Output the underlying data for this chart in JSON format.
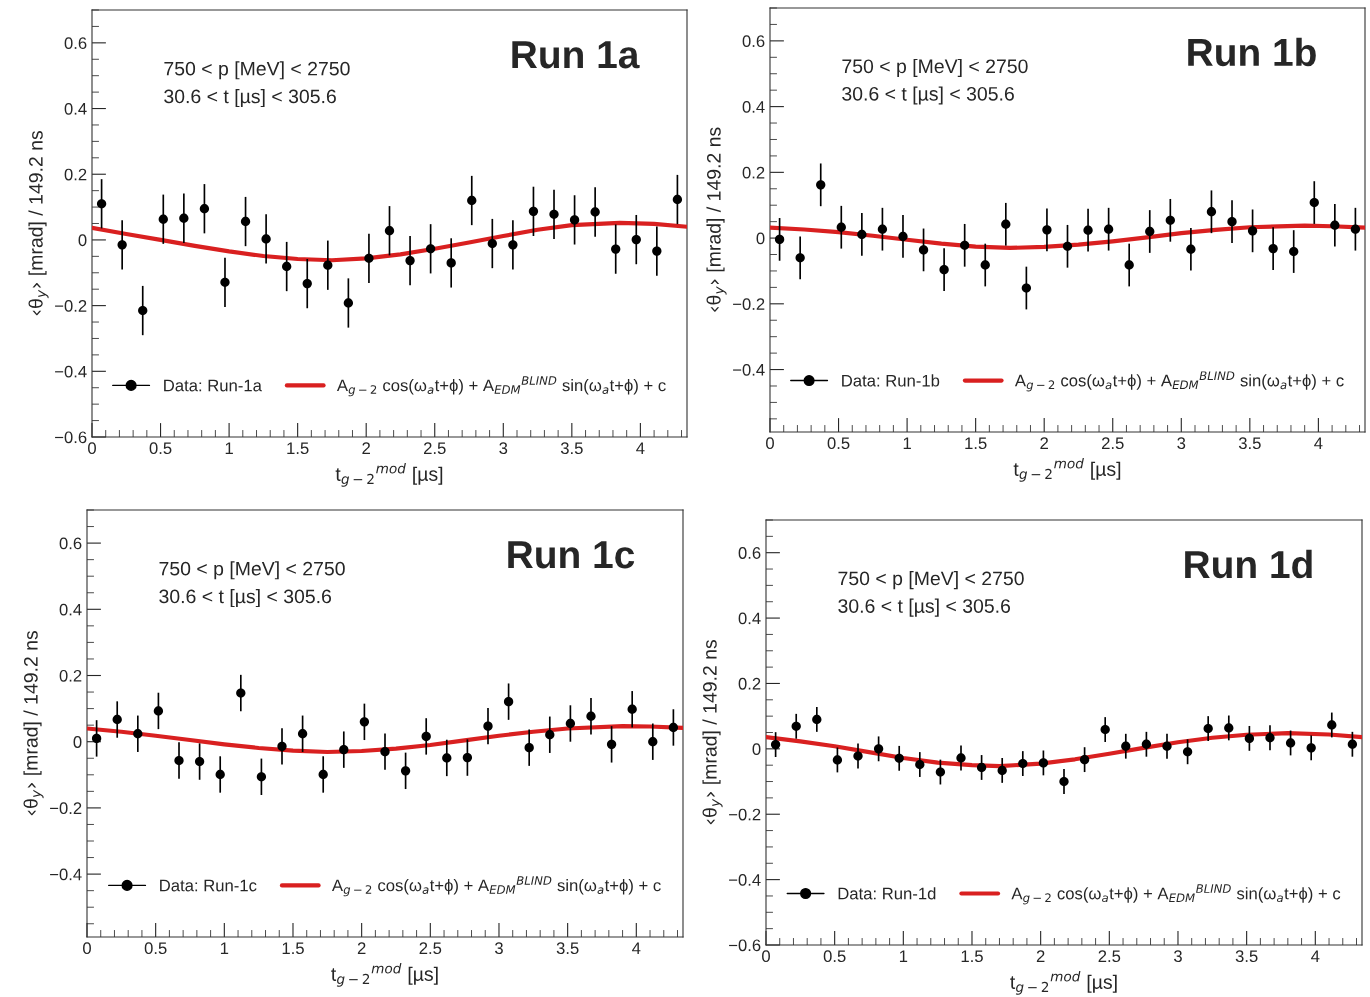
{
  "chart_data": [
    {
      "type": "scatter",
      "title": "Run 1a",
      "xlabel": "t$_{g−2}$$^{mod}$ [µs]",
      "ylabel": "‹θ$_{y}$› [mrad] / 149.2 ns",
      "annotations": [
        "750 < p [MeV] < 2750",
        "30.6 < t [µs] < 305.6"
      ],
      "xlim": [
        0,
        4.34
      ],
      "xticks": [
        0,
        0.5,
        1,
        1.5,
        2,
        2.5,
        3,
        3.5,
        4
      ],
      "ylim": [
        -0.6,
        0.7
      ],
      "yticks": [
        -0.6,
        -0.4,
        -0.2,
        0,
        0.2,
        0.4,
        0.6
      ],
      "grid": false,
      "legend": "bottom",
      "series": [
        {
          "name": "Data: Run-1a",
          "type": "scatter",
          "color": "#000000",
          "marker": "circle",
          "x": [
            0.07,
            0.22,
            0.37,
            0.52,
            0.67,
            0.82,
            0.97,
            1.12,
            1.27,
            1.42,
            1.57,
            1.72,
            1.87,
            2.02,
            2.17,
            2.32,
            2.47,
            2.62,
            2.77,
            2.92,
            3.07,
            3.22,
            3.37,
            3.52,
            3.67,
            3.82,
            3.97,
            4.12,
            4.27
          ],
          "values": [
            0.11,
            -0.015,
            -0.215,
            0.063,
            0.066,
            0.095,
            -0.129,
            0.056,
            0.003,
            -0.081,
            -0.133,
            -0.077,
            -0.192,
            -0.056,
            0.028,
            -0.063,
            -0.027,
            -0.07,
            0.12,
            -0.011,
            -0.015,
            0.087,
            0.078,
            0.061,
            0.085,
            -0.028,
            0.001,
            -0.034,
            0.123
          ],
          "errors": [
            0.075,
            0.075,
            0.075,
            0.075,
            0.075,
            0.075,
            0.075,
            0.075,
            0.075,
            0.075,
            0.075,
            0.075,
            0.075,
            0.075,
            0.075,
            0.075,
            0.075,
            0.075,
            0.075,
            0.075,
            0.075,
            0.075,
            0.075,
            0.075,
            0.075,
            0.075,
            0.075,
            0.075,
            0.075
          ]
        },
        {
          "name": "A$_{g−2}$ cos(ω$_{a}$t+ϕ) + A$_{EDM}$$^{BLIND}$ sin(ω$_{a}$t+ϕ) + c",
          "type": "line",
          "color": "#d92020",
          "x": [
            0,
            0.25,
            0.5,
            0.75,
            1.0,
            1.25,
            1.5,
            1.75,
            2.0,
            2.25,
            2.5,
            2.75,
            3.0,
            3.25,
            3.5,
            3.85,
            4.1,
            4.34
          ],
          "values": [
            0.037,
            0.018,
            0.0,
            -0.018,
            -0.035,
            -0.049,
            -0.058,
            -0.062,
            -0.056,
            -0.044,
            -0.027,
            -0.008,
            0.012,
            0.031,
            0.045,
            0.052,
            0.049,
            0.04
          ]
        }
      ]
    },
    {
      "type": "scatter",
      "title": "Run 1b",
      "xlabel": "t$_{g−2}$$^{mod}$ [µs]",
      "ylabel": "‹θ$_{y}$› [mrad] / 149.2 ns",
      "annotations": [
        "750 < p [MeV] < 2750",
        "30.6 < t [µs] < 305.6"
      ],
      "xlim": [
        0,
        4.34
      ],
      "xticks": [
        0,
        0.5,
        1,
        1.5,
        2,
        2.5,
        3,
        3.5,
        4
      ],
      "ylim": [
        -0.59,
        0.7
      ],
      "yticks": [
        -0.4,
        -0.2,
        0,
        0.2,
        0.4,
        0.6
      ],
      "grid": false,
      "legend": "bottom",
      "series": [
        {
          "name": "Data: Run-1b",
          "type": "scatter",
          "color": "#000000",
          "marker": "circle",
          "x": [
            0.07,
            0.22,
            0.37,
            0.52,
            0.67,
            0.82,
            0.97,
            1.12,
            1.27,
            1.42,
            1.57,
            1.72,
            1.87,
            2.02,
            2.17,
            2.32,
            2.47,
            2.62,
            2.77,
            2.92,
            3.07,
            3.22,
            3.37,
            3.52,
            3.67,
            3.82,
            3.97,
            4.12,
            4.27
          ],
          "values": [
            -0.004,
            -0.06,
            0.162,
            0.033,
            0.011,
            0.027,
            0.005,
            -0.036,
            -0.096,
            -0.022,
            -0.082,
            0.042,
            -0.152,
            0.025,
            -0.025,
            0.024,
            0.027,
            -0.082,
            0.02,
            0.054,
            -0.034,
            0.08,
            0.05,
            0.022,
            -0.032,
            -0.041,
            0.108,
            0.039,
            0.027
          ],
          "errors": [
            0.065,
            0.065,
            0.065,
            0.065,
            0.065,
            0.065,
            0.065,
            0.065,
            0.065,
            0.065,
            0.065,
            0.065,
            0.065,
            0.065,
            0.065,
            0.065,
            0.065,
            0.065,
            0.065,
            0.065,
            0.065,
            0.065,
            0.065,
            0.065,
            0.065,
            0.065,
            0.065,
            0.065,
            0.065
          ]
        },
        {
          "name": "A$_{g−2}$ cos(ω$_{a}$t+ϕ) + A$_{EDM}$$^{BLIND}$ sin(ω$_{a}$t+ϕ) + c",
          "type": "line",
          "color": "#d92020",
          "x": [
            0,
            0.25,
            0.5,
            0.75,
            1.0,
            1.25,
            1.5,
            1.75,
            2.0,
            2.25,
            2.5,
            2.75,
            3.0,
            3.25,
            3.5,
            3.9,
            4.1,
            4.34
          ],
          "values": [
            0.032,
            0.026,
            0.018,
            0.007,
            -0.005,
            -0.017,
            -0.026,
            -0.03,
            -0.027,
            -0.02,
            -0.01,
            0.002,
            0.015,
            0.025,
            0.033,
            0.038,
            0.036,
            0.032
          ]
        }
      ]
    },
    {
      "type": "scatter",
      "title": "Run 1c",
      "xlabel": "t$_{g−2}$$^{mod}$ [µs]",
      "ylabel": "‹θ$_{y}$› [mrad] / 149.2 ns",
      "annotations": [
        "750 < p [MeV] < 2750",
        "30.6 < t [µs] < 305.6"
      ],
      "xlim": [
        0,
        4.34
      ],
      "xticks": [
        0,
        0.5,
        1,
        1.5,
        2,
        2.5,
        3,
        3.5,
        4
      ],
      "ylim": [
        -0.59,
        0.7
      ],
      "yticks": [
        -0.4,
        -0.2,
        0,
        0.2,
        0.4,
        0.6
      ],
      "grid": false,
      "legend": "bottom",
      "series": [
        {
          "name": "Data: Run-1c",
          "type": "scatter",
          "color": "#000000",
          "marker": "circle",
          "x": [
            0.07,
            0.22,
            0.37,
            0.52,
            0.67,
            0.82,
            0.97,
            1.12,
            1.27,
            1.42,
            1.57,
            1.72,
            1.87,
            2.02,
            2.17,
            2.32,
            2.47,
            2.62,
            2.77,
            2.92,
            3.07,
            3.22,
            3.37,
            3.52,
            3.67,
            3.82,
            3.97,
            4.12,
            4.27
          ],
          "values": [
            0.01,
            0.067,
            0.024,
            0.093,
            -0.057,
            -0.06,
            -0.099,
            0.147,
            -0.106,
            -0.014,
            0.024,
            -0.099,
            -0.024,
            0.06,
            -0.03,
            -0.088,
            0.016,
            -0.049,
            -0.048,
            0.047,
            0.121,
            -0.018,
            0.021,
            0.055,
            0.077,
            -0.008,
            0.098,
            0.0,
            0.043
          ],
          "errors": [
            0.055,
            0.055,
            0.055,
            0.055,
            0.055,
            0.055,
            0.055,
            0.055,
            0.055,
            0.055,
            0.055,
            0.055,
            0.055,
            0.055,
            0.055,
            0.055,
            0.055,
            0.055,
            0.055,
            0.055,
            0.055,
            0.055,
            0.055,
            0.055,
            0.055,
            0.055,
            0.055,
            0.055,
            0.055
          ]
        },
        {
          "name": "A$_{g−2}$ cos(ω$_{a}$t+ϕ) + A$_{EDM}$$^{BLIND}$ sin(ω$_{a}$t+ϕ) + c",
          "type": "line",
          "color": "#d92020",
          "x": [
            0,
            0.25,
            0.5,
            0.75,
            1.0,
            1.25,
            1.5,
            1.75,
            2.0,
            2.25,
            2.5,
            2.75,
            3.0,
            3.25,
            3.5,
            3.9,
            4.1,
            4.34
          ],
          "values": [
            0.04,
            0.03,
            0.018,
            0.005,
            -0.008,
            -0.019,
            -0.027,
            -0.031,
            -0.028,
            -0.021,
            -0.01,
            0.004,
            0.018,
            0.03,
            0.04,
            0.047,
            0.046,
            0.042
          ]
        }
      ]
    },
    {
      "type": "scatter",
      "title": "Run 1d",
      "xlabel": "t$_{g−2}$$^{mod}$ [µs]",
      "ylabel": "‹θ$_{y}$› [mrad] / 149.2 ns",
      "annotations": [
        "750 < p [MeV] < 2750",
        "30.6 < t [µs] < 305.6"
      ],
      "xlim": [
        0,
        4.34
      ],
      "xticks": [
        0,
        0.5,
        1,
        1.5,
        2,
        2.5,
        3,
        3.5,
        4
      ],
      "ylim": [
        -0.6,
        0.7
      ],
      "yticks": [
        -0.6,
        -0.4,
        -0.2,
        0,
        0.2,
        0.4,
        0.6
      ],
      "grid": false,
      "legend": "bottom",
      "series": [
        {
          "name": "Data: Run-1d",
          "type": "scatter",
          "color": "#000000",
          "marker": "circle",
          "x": [
            0.07,
            0.22,
            0.37,
            0.52,
            0.67,
            0.82,
            0.97,
            1.12,
            1.27,
            1.42,
            1.57,
            1.72,
            1.87,
            2.02,
            2.17,
            2.32,
            2.47,
            2.62,
            2.77,
            2.92,
            3.07,
            3.22,
            3.37,
            3.52,
            3.67,
            3.82,
            3.97,
            4.12,
            4.27
          ],
          "values": [
            0.013,
            0.069,
            0.09,
            -0.034,
            -0.022,
            0.0,
            -0.029,
            -0.048,
            -0.071,
            -0.028,
            -0.057,
            -0.066,
            -0.045,
            -0.043,
            -0.1,
            -0.033,
            0.059,
            0.008,
            0.014,
            0.008,
            -0.009,
            0.062,
            0.064,
            0.032,
            0.034,
            0.018,
            0.003,
            0.073,
            0.014
          ],
          "errors": [
            0.038,
            0.038,
            0.038,
            0.038,
            0.038,
            0.038,
            0.038,
            0.038,
            0.038,
            0.038,
            0.038,
            0.038,
            0.038,
            0.038,
            0.038,
            0.038,
            0.038,
            0.038,
            0.038,
            0.038,
            0.038,
            0.038,
            0.038,
            0.038,
            0.038,
            0.038,
            0.038,
            0.038,
            0.038
          ]
        },
        {
          "name": "A$_{g−2}$ cos(ω$_{a}$t+ϕ) + A$_{EDM}$$^{BLIND}$ sin(ω$_{a}$t+ϕ) + c",
          "type": "line",
          "color": "#d92020",
          "x": [
            0,
            0.25,
            0.5,
            0.75,
            1.0,
            1.25,
            1.5,
            1.7,
            2.0,
            2.25,
            2.5,
            2.75,
            3.0,
            3.25,
            3.5,
            3.8,
            4.1,
            4.34
          ],
          "values": [
            0.036,
            0.023,
            0.008,
            -0.01,
            -0.028,
            -0.042,
            -0.05,
            -0.053,
            -0.045,
            -0.032,
            -0.015,
            0.003,
            0.02,
            0.034,
            0.043,
            0.048,
            0.044,
            0.036
          ]
        }
      ]
    }
  ]
}
